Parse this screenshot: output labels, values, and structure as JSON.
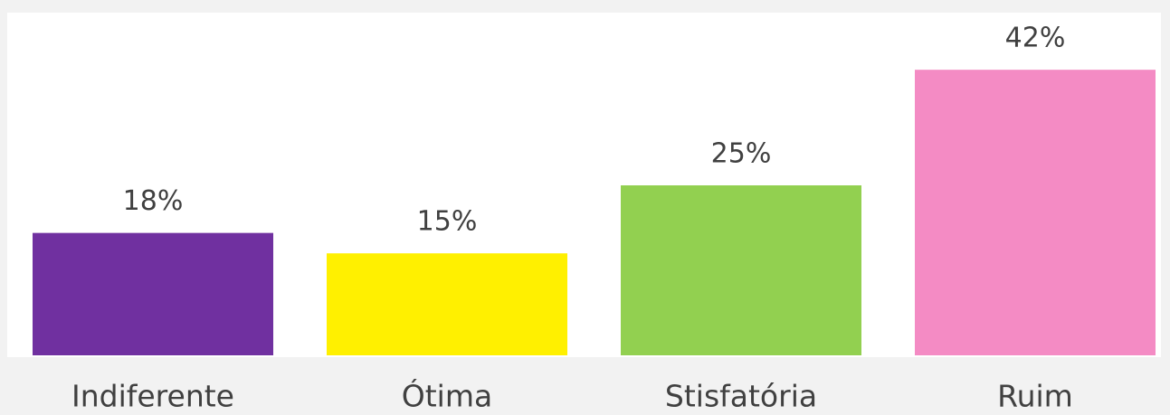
{
  "chart_data": {
    "type": "bar",
    "categories": [
      "Indiferente",
      "Ótima",
      "Stisfatória",
      "Ruim"
    ],
    "values": [
      18,
      15,
      25,
      42
    ],
    "value_labels": [
      "18%",
      "15%",
      "25%",
      "42%"
    ],
    "colors": [
      "#7030a0",
      "#fff000",
      "#92d050",
      "#f48bc4"
    ],
    "ylim": [
      0,
      50
    ]
  }
}
